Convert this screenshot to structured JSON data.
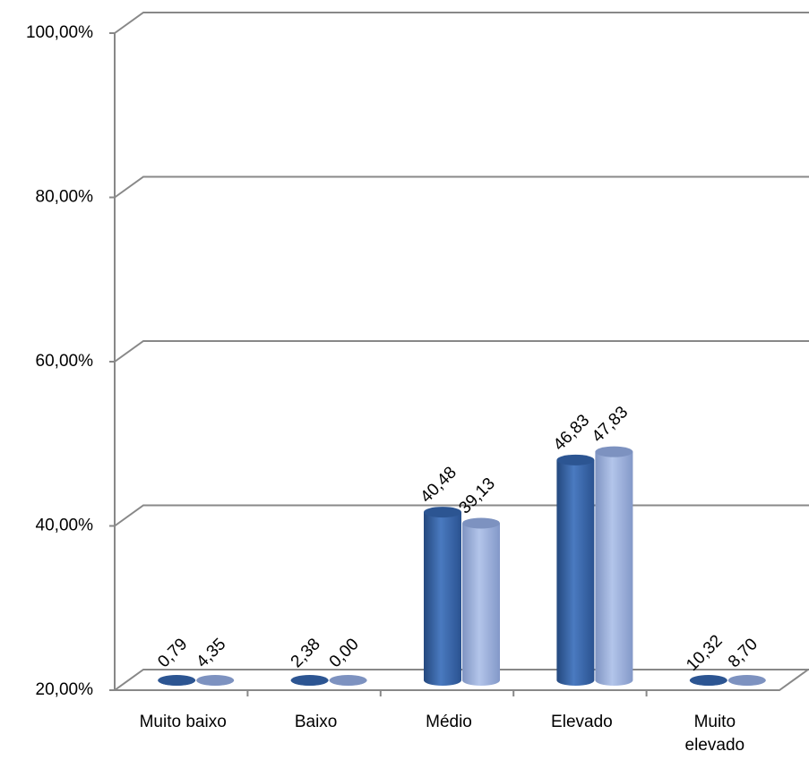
{
  "chart_data": {
    "type": "bar3d",
    "categories": [
      "Muito baixo",
      "Baixo",
      "Médio",
      "Elevado",
      "Muito elevado"
    ],
    "series": [
      {
        "color": "#3a66a6",
        "values": [
          0.79,
          2.38,
          40.48,
          46.83,
          10.32
        ],
        "value_labels": [
          "0,79",
          "2,38",
          "40,48",
          "46,83",
          "10,32"
        ]
      },
      {
        "color": "#9db2de",
        "values": [
          4.35,
          0.0,
          39.13,
          47.83,
          8.7
        ],
        "value_labels": [
          "4,35",
          "0,00",
          "39,13",
          "47,83",
          "8,70"
        ]
      }
    ],
    "ylim": [
      20,
      100
    ],
    "yticks": [
      {
        "value": 20,
        "label": "20,00%"
      },
      {
        "value": 40,
        "label": "40,00%"
      },
      {
        "value": 60,
        "label": "60,00%"
      },
      {
        "value": 80,
        "label": "80,00%"
      },
      {
        "value": 100,
        "label": "100,00%"
      }
    ],
    "grid": true
  }
}
